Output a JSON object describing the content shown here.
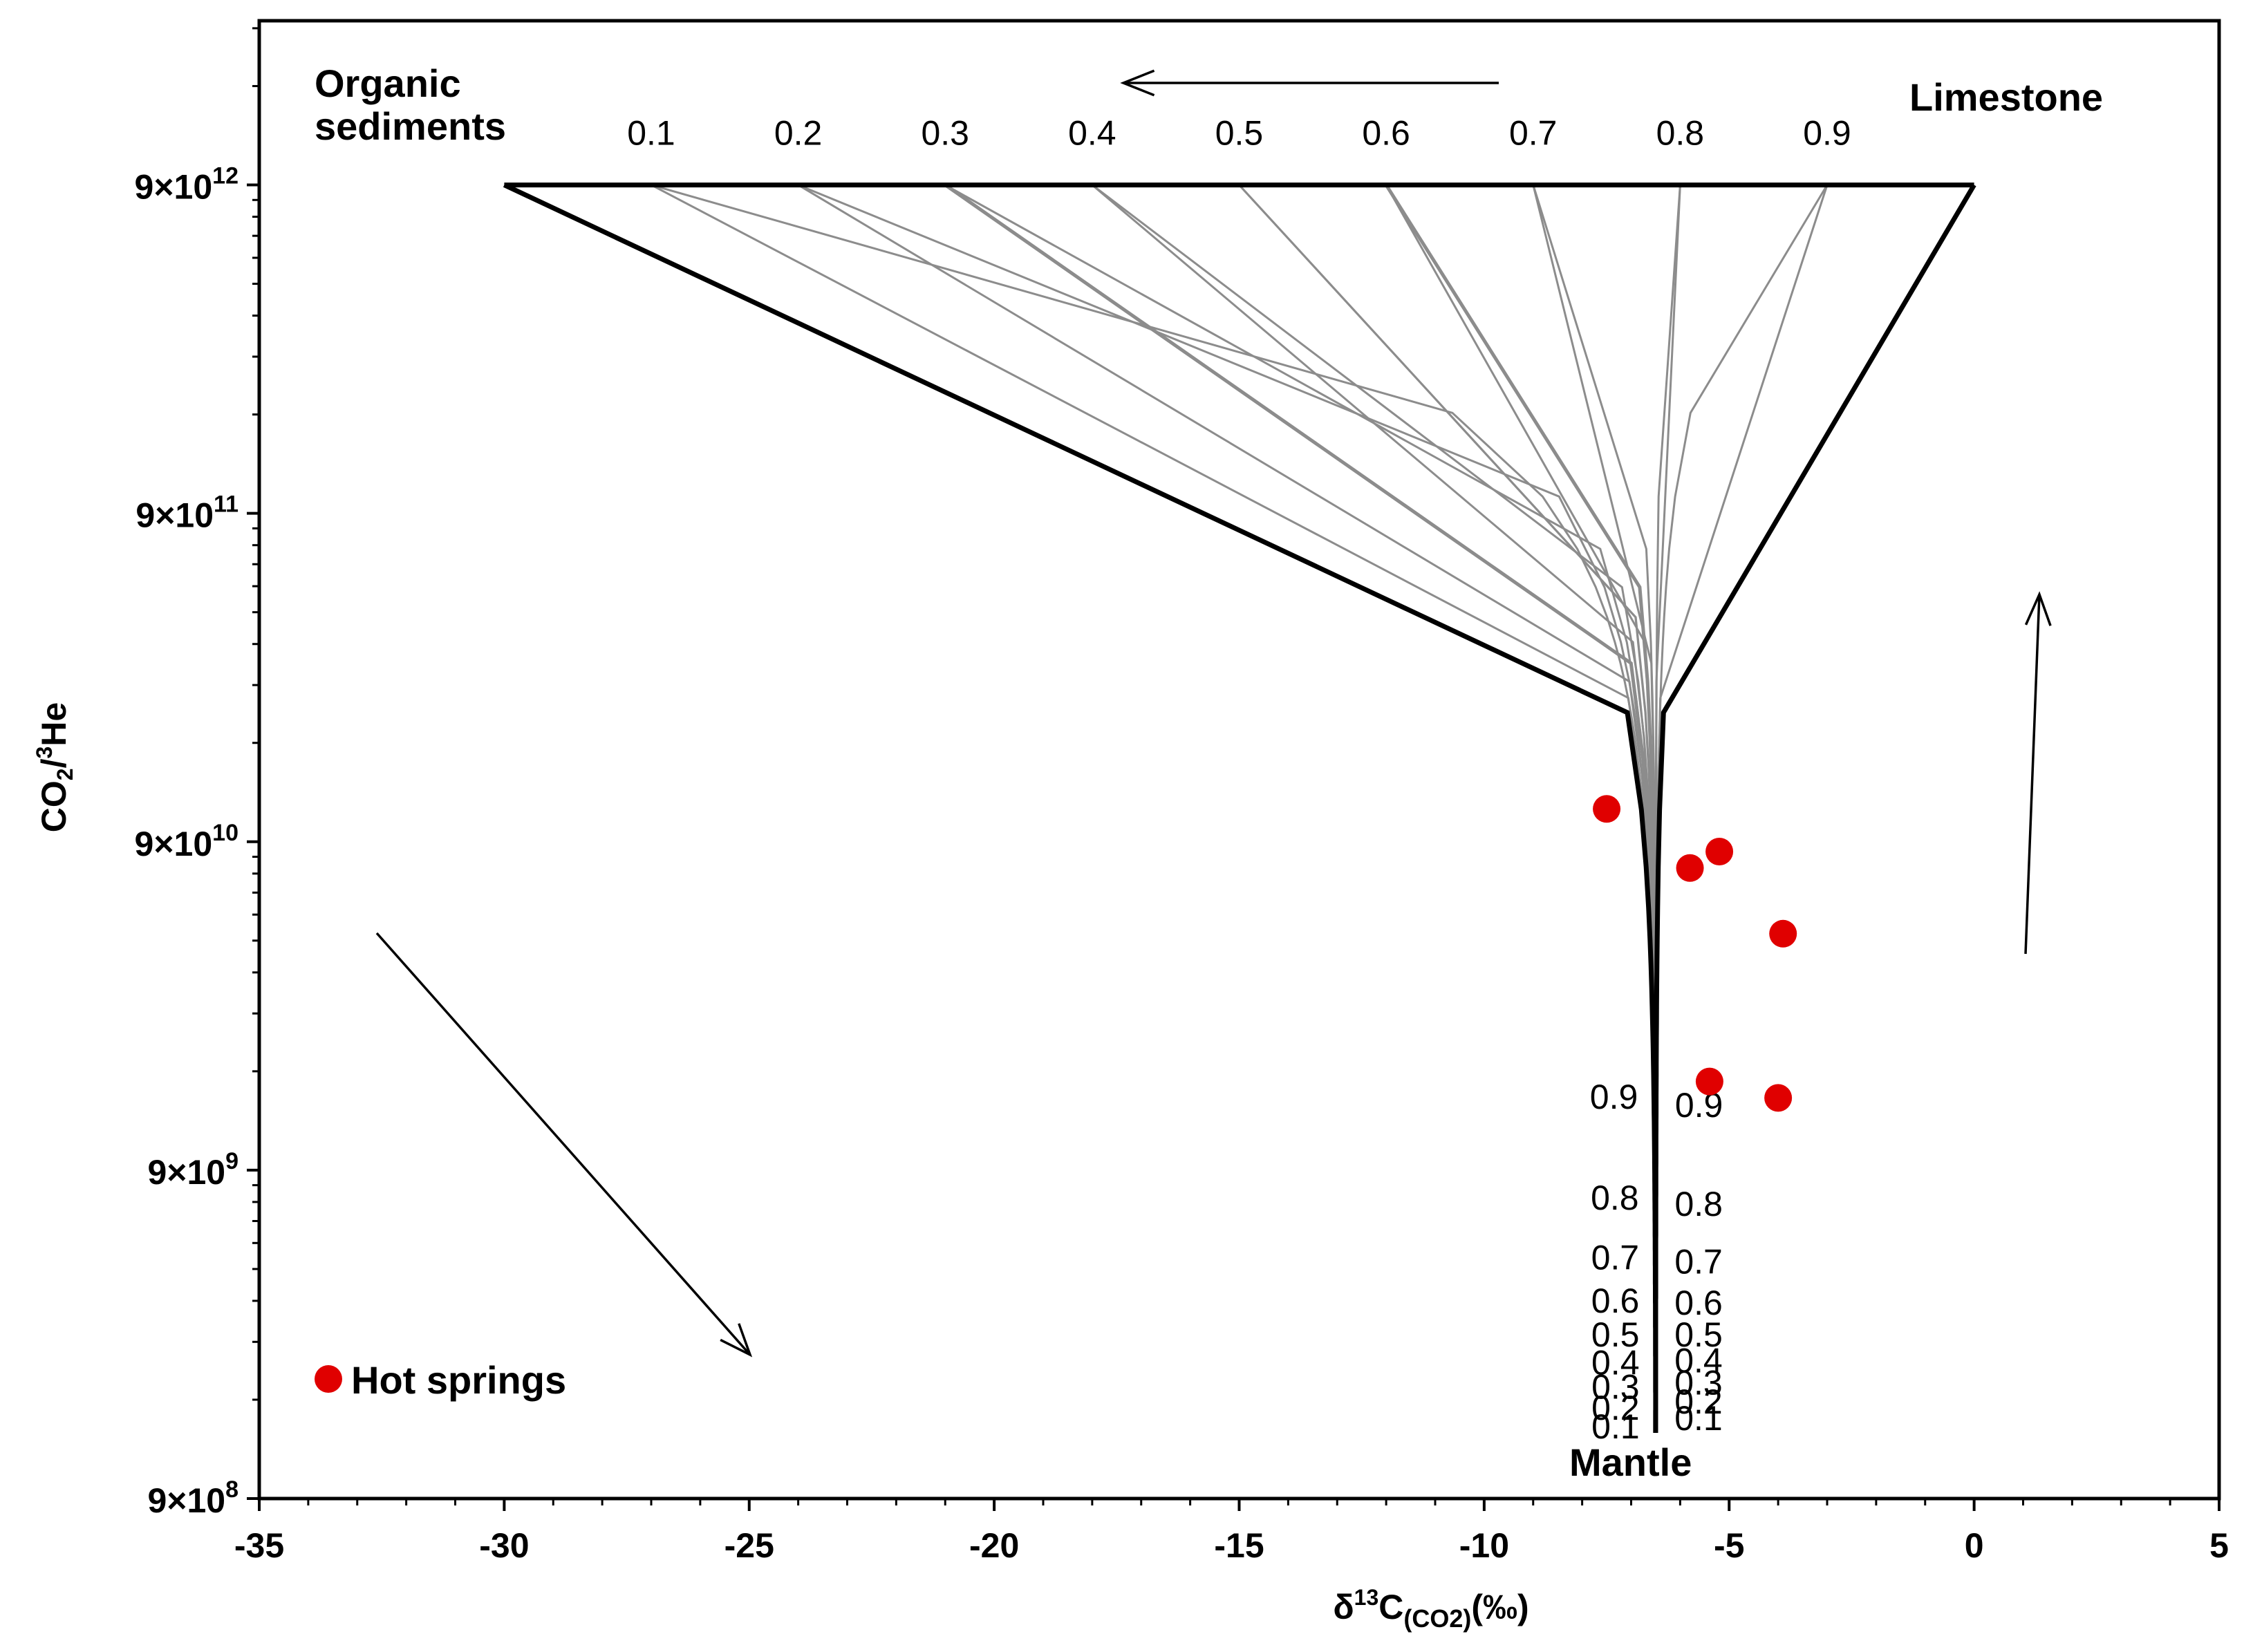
{
  "chart_data": {
    "type": "scatter",
    "title": "",
    "xlabel": "δ¹³C(CO2)(‰)",
    "xlabel_parts": {
      "main": "δ",
      "sup": "13",
      "mid": "C",
      "sub": "(CO2)",
      "tail": "(‰)"
    },
    "ylabel": "CO2/3He",
    "ylabel_parts": {
      "a": "CO",
      "sub": "2",
      "b": "/",
      "sup": "3",
      "c": "He"
    },
    "xlim": [
      -35,
      5
    ],
    "ylim_log10_of_9e": [
      8,
      12.5
    ],
    "x_ticks": [
      -35,
      -30,
      -25,
      -20,
      -15,
      -10,
      -5,
      0,
      5
    ],
    "x_tick_labels": [
      "-35",
      "-30",
      "-25",
      "-20",
      "-15",
      "-10",
      "-5",
      "0",
      "5"
    ],
    "y_ticks": [
      {
        "exp": 8,
        "base": "9×10",
        "sup": "8"
      },
      {
        "exp": 9,
        "base": "9×10",
        "sup": "9"
      },
      {
        "exp": 10,
        "base": "9×10",
        "sup": "10"
      },
      {
        "exp": 11,
        "base": "9×10",
        "sup": "11"
      },
      {
        "exp": 12,
        "base": "9×10",
        "sup": "12"
      }
    ],
    "end_members": {
      "mantle": {
        "name": "Mantle",
        "x": -6.5,
        "y_exp": 8.2
      },
      "limestone": {
        "name": "Limestone",
        "x": 0,
        "y_exp": 12.0
      },
      "organic": {
        "name": "Organic sediments",
        "name_line1": "Organic",
        "name_line2": "sediments",
        "x": -30,
        "y_exp": 12.0
      }
    },
    "top_fraction_labels": [
      "0.9",
      "0.8",
      "0.7",
      "0.6",
      "0.5",
      "0.4",
      "0.3",
      "0.2",
      "0.1"
    ],
    "left_fraction_labels": [
      "0.1",
      "0.2",
      "0.3",
      "0.4",
      "0.5",
      "0.6",
      "0.7",
      "0.8",
      "0.9"
    ],
    "right_fraction_labels": [
      "0.9",
      "0.8",
      "0.7",
      "0.6",
      "0.5",
      "0.4",
      "0.3",
      "0.2",
      "0.1"
    ],
    "series": [
      {
        "name": "Hot springs",
        "color": "#e00000",
        "points": [
          {
            "x": -7.5,
            "y_exp": 10.1
          },
          {
            "x": -5.8,
            "y_exp": 9.92
          },
          {
            "x": -5.2,
            "y_exp": 9.97
          },
          {
            "x": -3.9,
            "y_exp": 9.72
          },
          {
            "x": -5.4,
            "y_exp": 9.27
          },
          {
            "x": -4.0,
            "y_exp": 9.22
          }
        ]
      }
    ],
    "legend": {
      "label": "Hot springs",
      "placement": "bottom-left"
    },
    "colors": {
      "grid_line": "#8c8c8c",
      "frame": "#000000",
      "point": "#e00000"
    }
  }
}
